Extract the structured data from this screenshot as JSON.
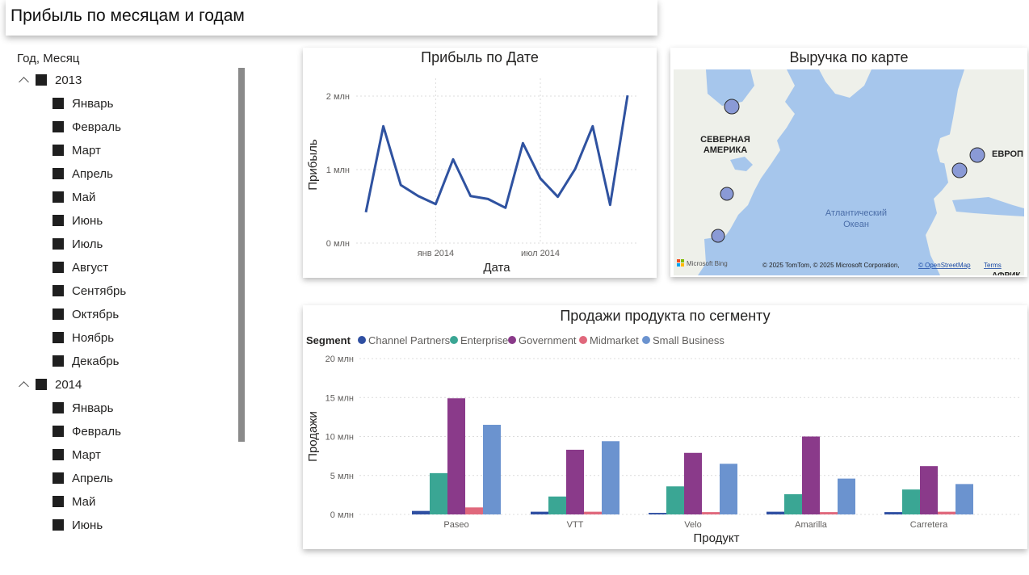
{
  "page_title": "Прибыль по месяцам и годам",
  "slicer": {
    "header": "Год, Месяц",
    "years": [
      {
        "label": "2013",
        "months": [
          "Январь",
          "Февраль",
          "Март",
          "Апрель",
          "Май",
          "Июнь",
          "Июль",
          "Август",
          "Сентябрь",
          "Октябрь",
          "Ноябрь",
          "Декабрь"
        ]
      },
      {
        "label": "2014",
        "months": [
          "Январь",
          "Февраль",
          "Март",
          "Апрель",
          "Май",
          "Июнь"
        ]
      }
    ]
  },
  "map": {
    "title": "Выручка по карте",
    "labels": {
      "north_america": "СЕВЕРНАЯ\nАМЕРИКА",
      "europe": "ЕВРОП",
      "ocean": "Атлантический\nОкеан",
      "africa": "АФРИК"
    },
    "logo": "Microsoft Bing",
    "attribution": "© 2025 TomTom, © 2025 Microsoft Corporation,",
    "osm_link": "© OpenStreetMap",
    "terms_link": "Terms",
    "bubble_color": "#8a9ad6"
  },
  "chart_data": [
    {
      "type": "line",
      "title": "Прибыль по Дате",
      "xlabel": "Дата",
      "ylabel": "Прибыль",
      "x_tick_labels": [
        "янв 2014",
        "июл 2014"
      ],
      "y_tick_labels": [
        "0 млн",
        "1 млн",
        "2 млн"
      ],
      "ylim": [
        0,
        2.0
      ],
      "x": [
        "2013-09",
        "2013-10",
        "2013-11",
        "2013-12",
        "2014-01",
        "2014-02",
        "2014-03",
        "2014-04",
        "2014-05",
        "2014-06",
        "2014-07",
        "2014-08",
        "2014-09",
        "2014-10",
        "2014-11",
        "2014-12"
      ],
      "series": [
        {
          "values": [
            0.42,
            1.59,
            0.79,
            0.64,
            0.53,
            1.14,
            0.64,
            0.6,
            0.48,
            1.36,
            0.88,
            0.63,
            1.01,
            1.59,
            0.52,
            2.01
          ]
        }
      ],
      "color": "#2f52a0",
      "grid": true
    },
    {
      "type": "bar",
      "title": "Продажи продукта по сегменту",
      "xlabel": "Продукт",
      "ylabel": "Продажи",
      "legend_title": "Segment",
      "categories": [
        "Paseo",
        "VTT",
        "Velo",
        "Amarilla",
        "Carretera"
      ],
      "y_tick_labels": [
        "0 млн",
        "5 млн",
        "10 млн",
        "15 млн",
        "20 млн"
      ],
      "ylim": [
        0,
        20
      ],
      "series": [
        {
          "name": "Channel Partners",
          "color": "#2f4fa2",
          "values": [
            0.45,
            0.35,
            0.2,
            0.35,
            0.3
          ]
        },
        {
          "name": "Enterprise",
          "color": "#3aa694",
          "values": [
            5.3,
            2.3,
            3.6,
            2.6,
            3.2
          ]
        },
        {
          "name": "Government",
          "color": "#8a3a8a",
          "values": [
            14.9,
            8.3,
            7.9,
            10.0,
            6.2
          ]
        },
        {
          "name": "Midmarket",
          "color": "#e0687c",
          "values": [
            0.9,
            0.35,
            0.3,
            0.3,
            0.35
          ]
        },
        {
          "name": "Small Business",
          "color": "#6b93cf",
          "values": [
            11.5,
            9.4,
            6.5,
            4.6,
            3.9
          ]
        }
      ],
      "legend_position": "top-left",
      "grid": true
    }
  ]
}
